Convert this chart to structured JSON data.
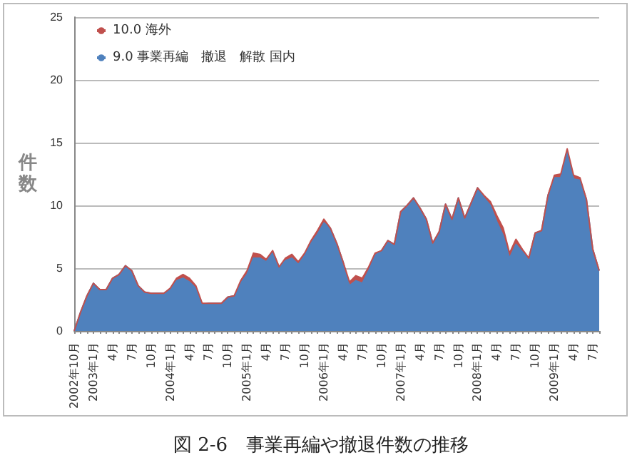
{
  "chart_data": {
    "type": "area",
    "stacked": true,
    "title": "図 2-6　事業再編や撤退件数の推移",
    "ylabel": "件数",
    "categories": [
      "2002年10月",
      null,
      null,
      "2003年1月",
      null,
      null,
      "4月",
      null,
      null,
      "7月",
      null,
      null,
      "10月",
      null,
      null,
      "2004年1月",
      null,
      null,
      "4月",
      null,
      null,
      "7月",
      null,
      null,
      "10月",
      null,
      null,
      "2005年1月",
      null,
      null,
      "4月",
      null,
      null,
      "7月",
      null,
      null,
      "10月",
      null,
      null,
      "2006年1月",
      null,
      null,
      "4月",
      null,
      null,
      "7月",
      null,
      null,
      "10月",
      null,
      null,
      "2007年1月",
      null,
      null,
      "4月",
      null,
      null,
      "7月",
      null,
      null,
      "10月",
      null,
      null,
      "2008年1月",
      null,
      null,
      "4月",
      null,
      null,
      "7月",
      null,
      null,
      "10月",
      null,
      null,
      "2009年1月",
      null,
      null,
      "4月",
      null,
      null,
      "7月",
      null
    ],
    "series": [
      {
        "name": "9.0 事業再編　撤退　解散 国内",
        "color": "#4f81bd",
        "values": [
          0,
          1.5,
          2.8,
          3.8,
          3.3,
          3.3,
          4.2,
          4.5,
          5.2,
          4.8,
          3.6,
          3.1,
          3.0,
          3.0,
          3.0,
          3.3,
          4.0,
          4.2,
          3.9,
          3.4,
          2.1,
          2.2,
          2.2,
          2.2,
          2.7,
          2.8,
          3.8,
          4.5,
          5.8,
          5.8,
          5.5,
          6.3,
          5.1,
          5.6,
          5.8,
          5.3,
          6.0,
          7.0,
          7.7,
          8.6,
          8.2,
          7.0,
          5.5,
          3.6,
          4.0,
          3.8,
          4.8,
          6.0,
          6.4,
          7.2,
          6.9,
          9.5,
          10.0,
          10.6,
          9.8,
          8.9,
          7.0,
          7.9,
          10.1,
          8.9,
          10.6,
          9.0,
          10.2,
          11.4,
          10.6,
          10.0,
          8.7,
          7.6,
          5.8,
          6.9,
          6.3,
          5.8,
          7.8,
          8.0,
          10.8,
          12.2,
          12.2,
          14.3,
          12.1,
          12.0,
          10.5,
          6.5,
          4.8
        ]
      },
      {
        "name": "10.0 海外",
        "color": "#c0504d",
        "values": [
          0,
          0,
          0,
          0,
          0,
          0,
          0,
          0,
          0,
          0,
          0,
          0,
          0,
          0,
          0,
          0.1,
          0.2,
          0.3,
          0.3,
          0.2,
          0.1,
          0,
          0,
          0,
          0,
          0,
          0.2,
          0.3,
          0.4,
          0.3,
          0.2,
          0.1,
          0,
          0.2,
          0.3,
          0.2,
          0.2,
          0.2,
          0.3,
          0.3,
          0,
          0,
          0,
          0.3,
          0.4,
          0.4,
          0.3,
          0.2,
          0,
          0,
          0,
          0,
          0,
          0,
          0,
          0,
          0,
          0,
          0,
          0,
          0,
          0,
          0,
          0,
          0.2,
          0.3,
          0.5,
          0.6,
          0.4,
          0.4,
          0.2,
          0,
          0,
          0,
          0,
          0.2,
          0.3,
          0.2,
          0.3,
          0.2,
          0,
          0,
          0
        ]
      }
    ],
    "ylim": [
      0,
      25
    ],
    "yticks": [
      0,
      5,
      10,
      15,
      20,
      25
    ],
    "grid": "y",
    "legend": "top left"
  }
}
